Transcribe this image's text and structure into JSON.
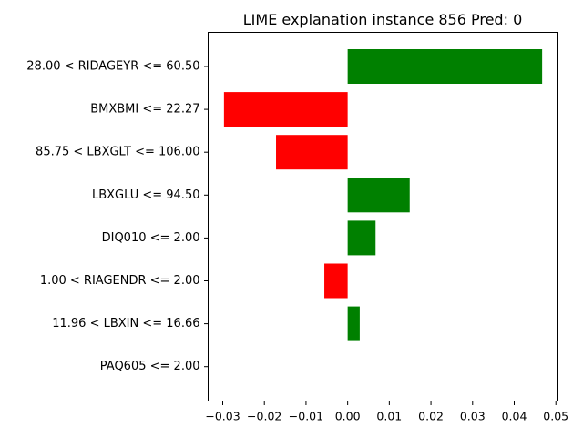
{
  "chart_data": {
    "type": "bar",
    "orientation": "horizontal",
    "title": "LIME explanation instance 856 Pred: 0",
    "xlabel": "",
    "ylabel": "",
    "xlim": [
      -0.0335,
      0.0505
    ],
    "xticks": [
      -0.03,
      -0.02,
      -0.01,
      0.0,
      0.01,
      0.02,
      0.03,
      0.04,
      0.05
    ],
    "xtick_labels": [
      "−0.03",
      "−0.02",
      "−0.01",
      "0.00",
      "0.01",
      "0.02",
      "0.03",
      "0.04",
      "0.05"
    ],
    "categories": [
      "28.00 < RIDAGEYR <= 60.50",
      "BMXBMI <= 22.27",
      "85.75 < LBXGLT <= 106.00",
      "LBXGLU <= 94.50",
      "DIQ010 <= 2.00",
      "1.00 < RIAGENDR <= 2.00",
      "11.96 < LBXIN <= 16.66",
      "PAQ605 <= 2.00"
    ],
    "values": [
      0.0467,
      -0.0297,
      -0.0172,
      0.0149,
      0.0067,
      -0.0056,
      0.0029,
      0.0
    ],
    "colors": {
      "positive": "#008000",
      "negative": "#ff0000"
    },
    "grid": false,
    "legend": "none"
  }
}
